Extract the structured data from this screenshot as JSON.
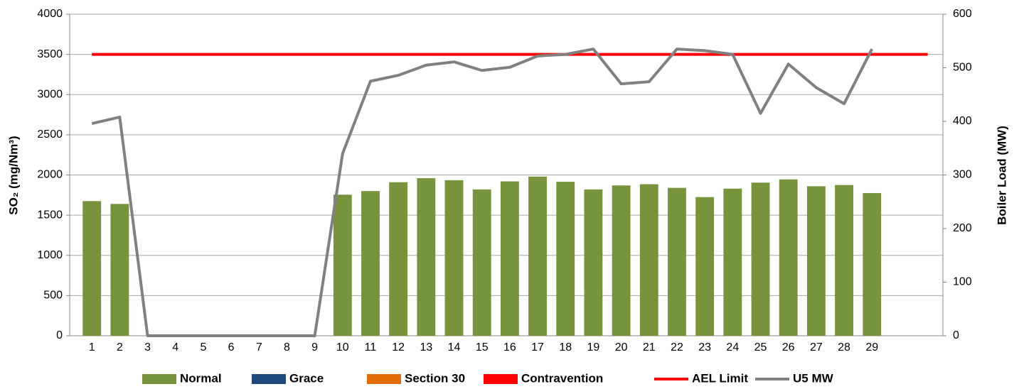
{
  "chart_data": {
    "type": "bar",
    "categories": [
      "1",
      "2",
      "3",
      "4",
      "5",
      "6",
      "7",
      "8",
      "9",
      "10",
      "11",
      "12",
      "13",
      "14",
      "15",
      "16",
      "17",
      "18",
      "19",
      "20",
      "21",
      "22",
      "23",
      "24",
      "25",
      "26",
      "27",
      "28",
      "29",
      null,
      null
    ],
    "y_label": "SO₂ (mg/Nm³)",
    "y2_label": "Boiler Load (MW)",
    "ylim": [
      0,
      4000
    ],
    "yticks": [
      0,
      500,
      1000,
      1500,
      2000,
      2500,
      3000,
      3500,
      4000
    ],
    "y2lim": [
      0,
      600
    ],
    "y2ticks": [
      0,
      100,
      200,
      300,
      400,
      500,
      600
    ],
    "grid": true,
    "legend": "bottom",
    "series": [
      {
        "name": "Normal",
        "type": "bar",
        "color": "#77933c",
        "values": [
          1675,
          1640,
          null,
          null,
          null,
          null,
          null,
          null,
          null,
          1755,
          1800,
          1910,
          1960,
          1935,
          1820,
          1920,
          1980,
          1915,
          1820,
          1870,
          1885,
          1840,
          1725,
          1830,
          1905,
          1945,
          1860,
          1875,
          1775,
          null,
          null
        ]
      },
      {
        "name": "Grace",
        "type": "bar",
        "color": "#1f497d",
        "values": [
          null,
          null,
          null,
          null,
          null,
          null,
          null,
          null,
          null,
          null,
          null,
          null,
          null,
          null,
          null,
          null,
          null,
          null,
          null,
          null,
          null,
          null,
          null,
          null,
          null,
          null,
          null,
          null,
          null,
          null,
          null
        ]
      },
      {
        "name": "Section 30",
        "type": "bar",
        "color": "#e36c09",
        "values": [
          null,
          null,
          null,
          null,
          null,
          null,
          null,
          null,
          null,
          null,
          null,
          null,
          null,
          null,
          null,
          null,
          null,
          null,
          null,
          null,
          null,
          null,
          null,
          null,
          null,
          null,
          null,
          null,
          null,
          null,
          null
        ]
      },
      {
        "name": "Contravention",
        "type": "bar",
        "color": "#ff0000",
        "values": [
          null,
          null,
          null,
          null,
          null,
          null,
          null,
          null,
          null,
          null,
          null,
          null,
          null,
          null,
          null,
          null,
          null,
          null,
          null,
          null,
          null,
          null,
          null,
          null,
          null,
          null,
          null,
          null,
          null,
          null,
          null
        ]
      },
      {
        "name": "AEL Limit",
        "type": "line",
        "color": "#ff0000",
        "values": [
          3500,
          3500,
          3500,
          3500,
          3500,
          3500,
          3500,
          3500,
          3500,
          3500,
          3500,
          3500,
          3500,
          3500,
          3500,
          3500,
          3500,
          3500,
          3500,
          3500,
          3500,
          3500,
          3500,
          3500,
          3500,
          3500,
          3500,
          3500,
          3500,
          3500,
          3500
        ]
      },
      {
        "name": "U5 MW",
        "type": "line",
        "axis": "y2",
        "color": "#808080",
        "values": [
          396,
          408,
          0,
          0,
          0,
          0,
          0,
          0,
          0,
          340,
          475,
          486,
          505,
          511,
          495,
          501,
          522,
          525,
          535,
          470,
          474,
          535,
          532,
          525,
          415,
          507,
          463,
          433,
          535,
          null,
          null
        ]
      }
    ]
  }
}
